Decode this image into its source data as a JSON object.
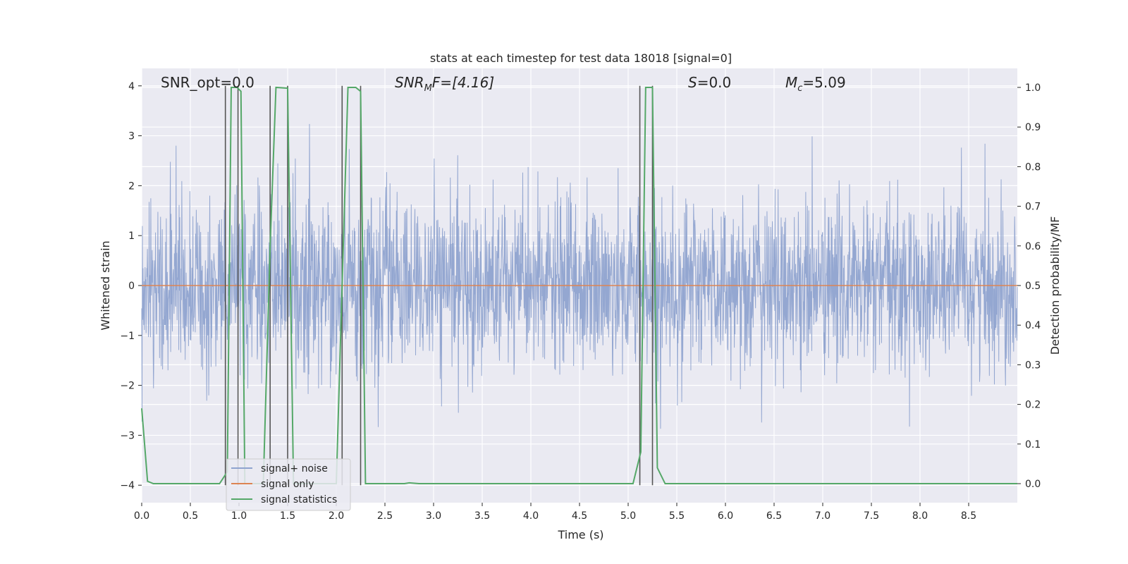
{
  "chart_data": {
    "type": "line",
    "title": "stats at each timestep for test data 18018 [signal=0]",
    "xlabel": "Time (s)",
    "ylabel": "Whitened strain",
    "y2label": "Detection probability/MF",
    "xlim": [
      0,
      9
    ],
    "ylim": [
      -4.35,
      4.35
    ],
    "y2lim": [
      -0.048,
      1.048
    ],
    "xticks": [
      0,
      0.5,
      1,
      1.5,
      2,
      2.5,
      3,
      3.5,
      4,
      4.5,
      5,
      5.5,
      6,
      6.5,
      7,
      7.5,
      8,
      8.5
    ],
    "xtick_labels": [
      "0.0",
      "0.5",
      "1.0",
      "1.5",
      "2.0",
      "2.5",
      "3.0",
      "3.5",
      "4.0",
      "4.5",
      "5.0",
      "5.5",
      "6.0",
      "6.5",
      "7.0",
      "7.5",
      "8.0",
      "8.5"
    ],
    "yticks": [
      4,
      3,
      2,
      1,
      0,
      -1,
      -2,
      -3,
      -4
    ],
    "ytick_labels": [
      "4",
      "3",
      "2",
      "1",
      "0",
      "−1",
      "−2",
      "−3",
      "−4"
    ],
    "y2ticks": [
      1.0,
      0.9,
      0.8,
      0.7,
      0.6,
      0.5,
      0.4,
      0.3,
      0.2,
      0.1,
      0.0
    ],
    "y2tick_labels": [
      "1.0",
      "0.9",
      "0.8",
      "0.7",
      "0.6",
      "0.5",
      "0.4",
      "0.3",
      "0.2",
      "0.1",
      "0.0"
    ],
    "grid": true,
    "legend_position": "lower-left",
    "annotations": {
      "snr_opt": "SNR_opt=0.0",
      "snr_mf_prefix": "SNR",
      "snr_mf_sub": "M",
      "snr_mf_suffix": "F=[4.16]",
      "s_var": "S",
      "s_val": "=0.0",
      "mc_var": "M",
      "mc_sub": "c",
      "mc_val": "=5.09"
    },
    "series": [
      {
        "name": "signal+ noise",
        "color": "#8fa3cf",
        "description_style": "dense noise trace, std approx 0.8, peaks up to about ±4"
      },
      {
        "name": "signal only",
        "color": "#dd8452",
        "values_constant": 0
      },
      {
        "name": "signal statistics",
        "color": "#55a868",
        "axis": "right",
        "x": [
          0,
          0.06,
          0.12,
          0.8,
          0.88,
          0.92,
          0.98,
          1.02,
          1.06,
          1.25,
          1.32,
          1.38,
          1.5,
          1.56,
          1.6,
          2.0,
          2.06,
          2.12,
          2.2,
          2.25,
          2.3,
          2.34,
          2.4,
          2.7,
          2.75,
          2.85,
          5.05,
          5.13,
          5.18,
          5.25,
          5.3,
          5.38,
          9.0
        ],
        "values": [
          0.19,
          0.006,
          0.0,
          0.0,
          0.03,
          1.0,
          1.0,
          0.99,
          0.0,
          0.0,
          0.6,
          1.0,
          0.998,
          0.0,
          0.0,
          0.0,
          0.5,
          1.0,
          1.0,
          0.99,
          0.0,
          0.0,
          0.0,
          0.0,
          0.002,
          0.0,
          0.0,
          0.08,
          1.0,
          1.0,
          0.04,
          0.0,
          0.0
        ]
      }
    ],
    "vertical_lines": [
      0.86,
      0.99,
      1.32,
      1.5,
      2.06,
      2.25,
      5.12,
      5.25
    ],
    "vertical_lines_color": "#555555"
  }
}
